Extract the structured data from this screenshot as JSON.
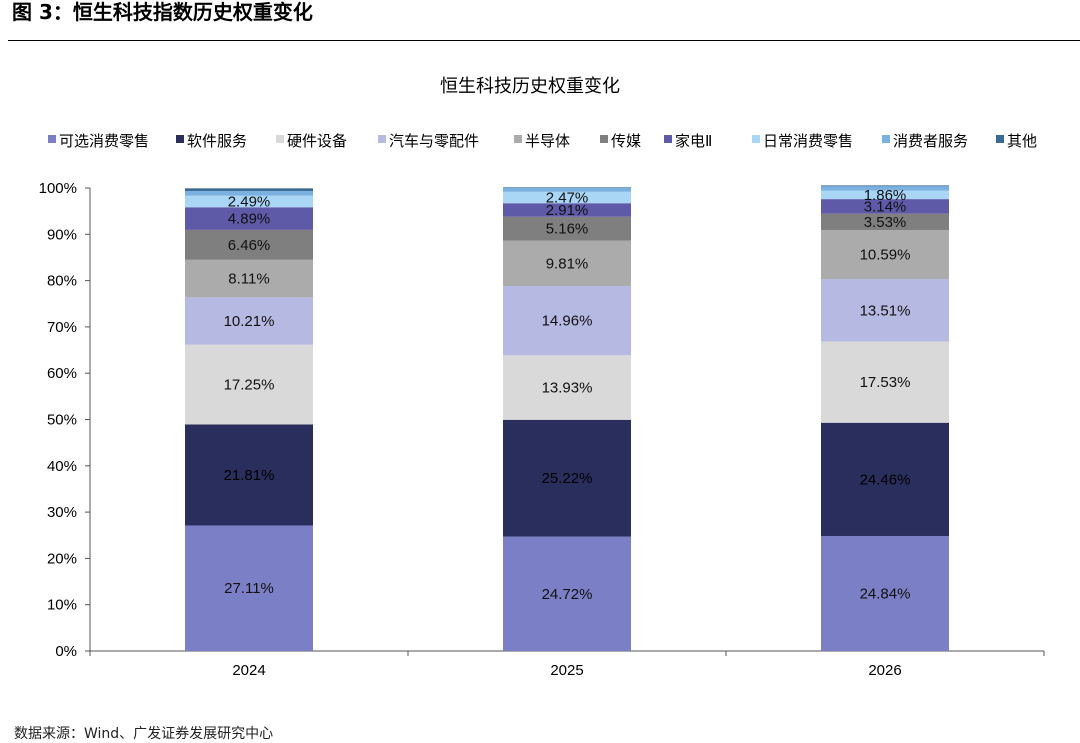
{
  "figure": {
    "label": "图 3：恒生科技指数历史权重变化",
    "source": "数据来源：Wind、广发证券发展研究中心"
  },
  "colors": {
    "可选消费零售": "#7b7fc6",
    "软件服务": "#2a2e5c",
    "硬件设备": "#d9d9d9",
    "汽车与零配件": "#b6b9e2",
    "半导体": "#ababab",
    "传媒": "#7f7f7f",
    "家电Ⅱ": "#5e5aa8",
    "日常消费零售": "#a9d6f5",
    "消费者服务": "#7bb1e0",
    "其他": "#3b6a94"
  },
  "chart_data": {
    "type": "bar",
    "stacked": true,
    "title": "恒生科技历史权重变化",
    "categories": [
      "2024",
      "2025",
      "2026"
    ],
    "ylim": [
      0,
      100
    ],
    "yticks": [
      "0%",
      "10%",
      "20%",
      "30%",
      "40%",
      "50%",
      "60%",
      "70%",
      "80%",
      "90%",
      "100%"
    ],
    "legend_position": "top",
    "grid": false,
    "series": [
      {
        "name": "可选消费零售",
        "values": [
          27.11,
          24.72,
          24.84
        ],
        "labels": [
          "27.11%",
          "24.72%",
          "24.84%"
        ]
      },
      {
        "name": "软件服务",
        "values": [
          21.81,
          25.22,
          24.46
        ],
        "labels": [
          "21.81%",
          "25.22%",
          "24.46%"
        ]
      },
      {
        "name": "硬件设备",
        "values": [
          17.25,
          13.93,
          17.53
        ],
        "labels": [
          "17.25%",
          "13.93%",
          "17.53%"
        ]
      },
      {
        "name": "汽车与零配件",
        "values": [
          10.21,
          14.96,
          13.51
        ],
        "labels": [
          "10.21%",
          "14.96%",
          "13.51%"
        ]
      },
      {
        "name": "半导体",
        "values": [
          8.11,
          9.81,
          10.59
        ],
        "labels": [
          "8.11%",
          "9.81%",
          "10.59%"
        ]
      },
      {
        "name": "传媒",
        "values": [
          6.46,
          5.16,
          3.53
        ],
        "labels": [
          "6.46%",
          "5.16%",
          "3.53%"
        ]
      },
      {
        "name": "家电Ⅱ",
        "values": [
          4.89,
          2.91,
          3.14
        ],
        "labels": [
          "4.89%",
          "2.91%",
          "3.14%"
        ]
      },
      {
        "name": "日常消费零售",
        "values": [
          2.49,
          2.47,
          1.86
        ],
        "labels": [
          "2.49%",
          "2.47%",
          "1.86%"
        ]
      },
      {
        "name": "消费者服务",
        "values": [
          1.0,
          0.9,
          0.9
        ],
        "labels": [
          "",
          "",
          ""
        ]
      },
      {
        "name": "其他",
        "values": [
          0.6,
          0.1,
          0.2
        ],
        "labels": [
          "",
          "",
          ""
        ]
      }
    ]
  }
}
